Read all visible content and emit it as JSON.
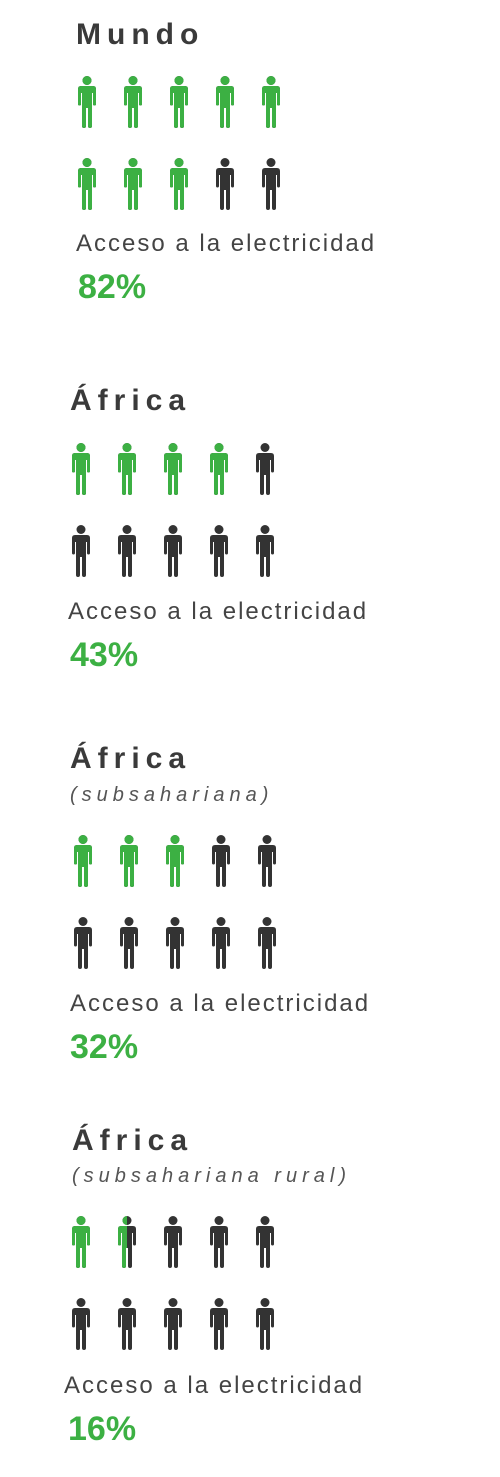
{
  "colors": {
    "filled": "#3cb043",
    "empty": "#333333",
    "title": "#3a3a3a",
    "label": "#444444"
  },
  "icon": "person-icon",
  "chart_data": {
    "type": "pictogram",
    "icons_per_chart": 10,
    "groups": [
      {
        "title": "Mundo",
        "subtitle": "",
        "label": "Acceso a la electricidad",
        "value_text": "82%",
        "value": 82,
        "filled_icons": 8
      },
      {
        "title": "África",
        "subtitle": "",
        "label": "Acceso a la electricidad",
        "value_text": "43%",
        "value": 43,
        "filled_icons": 4
      },
      {
        "title": "África",
        "subtitle": "(subsahariana)",
        "label": "Acceso a la electricidad",
        "value_text": "32%",
        "value": 32,
        "filled_icons": 3
      },
      {
        "title": "África",
        "subtitle": "(subsahariana rural)",
        "label": "Acceso a la electricidad",
        "value_text": "16%",
        "value": 16,
        "filled_icons": 1.5
      }
    ]
  }
}
